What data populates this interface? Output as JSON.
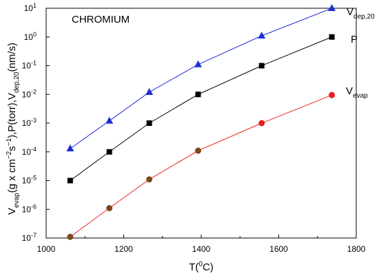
{
  "chart_data": {
    "type": "line",
    "title": "CHROMIUM",
    "xlabel": {
      "parts": [
        {
          "text": "T("
        },
        {
          "text": "0",
          "sup": true
        },
        {
          "text": "C)"
        }
      ]
    },
    "ylabel": {
      "parts": [
        {
          "text": "V"
        },
        {
          "text": "evap",
          "sub": true
        },
        {
          "text": "(g x cm"
        },
        {
          "text": "−2",
          "sup": true
        },
        {
          "text": "s"
        },
        {
          "text": "−1",
          "sup": true
        },
        {
          "text": "),P(torr),V"
        },
        {
          "text": "dep,20",
          "sub": true
        },
        {
          "text": "(nm/s)"
        }
      ]
    },
    "xlim": [
      1000,
      1800
    ],
    "ylim": [
      1e-07,
      10
    ],
    "yscale": "log",
    "x_ticks": [
      1000,
      1200,
      1400,
      1600,
      1800
    ],
    "y_ticks": [
      {
        "value": 1e-07,
        "base": "10",
        "exp": "-7"
      },
      {
        "value": 1e-06,
        "base": "10",
        "exp": "-6"
      },
      {
        "value": 1e-05,
        "base": "10",
        "exp": "-5"
      },
      {
        "value": 0.0001,
        "base": "10",
        "exp": "-4"
      },
      {
        "value": 0.001,
        "base": "10",
        "exp": "-3"
      },
      {
        "value": 0.01,
        "base": "10",
        "exp": "-2"
      },
      {
        "value": 0.1,
        "base": "10",
        "exp": "-1"
      },
      {
        "value": 1,
        "base": "10",
        "exp": "0"
      },
      {
        "value": 10,
        "base": "10",
        "exp": "1"
      }
    ],
    "grid": false,
    "legend": "none",
    "series": [
      {
        "name": "V",
        "name_sub": "dep,20",
        "color": "#1f2fd6",
        "marker": "triangle",
        "x": [
          1062,
          1163,
          1266,
          1392,
          1556,
          1737
        ],
        "y": [
          0.00013,
          0.0012,
          0.012,
          0.11,
          1.1,
          10
        ]
      },
      {
        "name": "P",
        "name_sub": "",
        "color": "#000000",
        "marker": "square",
        "x": [
          1062,
          1163,
          1266,
          1392,
          1556,
          1737
        ],
        "y": [
          1e-05,
          0.0001,
          0.001,
          0.01,
          0.1,
          1
        ]
      },
      {
        "name": "V",
        "name_sub": "evap",
        "color": "#e8201e",
        "marker_color": "#7a4a1e",
        "marker_color_end": "#e8201e",
        "marker": "circle",
        "x": [
          1062,
          1163,
          1266,
          1392,
          1556,
          1737
        ],
        "y": [
          1.1e-07,
          1.1e-06,
          1.1e-05,
          0.00011,
          0.001,
          0.0095
        ]
      }
    ]
  }
}
